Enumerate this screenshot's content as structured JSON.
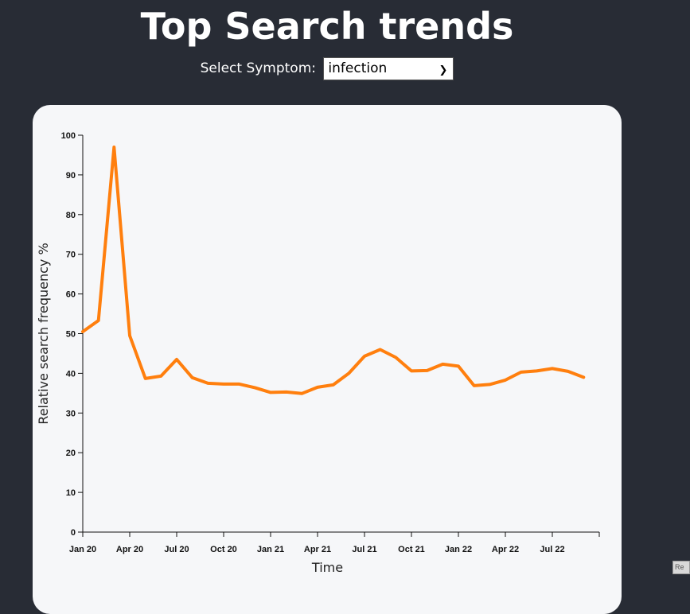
{
  "header": {
    "title": "Top Search trends"
  },
  "selector": {
    "label": "Select Symptom:",
    "selected": "infection"
  },
  "corner_widget": {
    "text": "Re"
  },
  "chart_data": {
    "type": "line",
    "title": "",
    "xlabel": "Time",
    "ylabel": "Relative search frequency %",
    "ylim": [
      0,
      100
    ],
    "yticks": [
      0,
      10,
      20,
      30,
      40,
      50,
      60,
      70,
      80,
      90,
      100
    ],
    "xrange": [
      "2020-01",
      "2022-10"
    ],
    "xticks": [
      {
        "date": "2020-01",
        "label": "Jan 20"
      },
      {
        "date": "2020-04",
        "label": "Apr 20"
      },
      {
        "date": "2020-07",
        "label": "Jul 20"
      },
      {
        "date": "2020-10",
        "label": "Oct 20"
      },
      {
        "date": "2021-01",
        "label": "Jan 21"
      },
      {
        "date": "2021-04",
        "label": "Apr 21"
      },
      {
        "date": "2021-07",
        "label": "Jul 21"
      },
      {
        "date": "2021-10",
        "label": "Oct 21"
      },
      {
        "date": "2022-01",
        "label": "Jan 22"
      },
      {
        "date": "2022-04",
        "label": "Apr 22"
      },
      {
        "date": "2022-07",
        "label": "Jul 22"
      }
    ],
    "line_color": "#ff7f0e",
    "grid": false,
    "series": [
      {
        "x": [
          "2020-01",
          "2020-02",
          "2020-03",
          "2020-04",
          "2020-05",
          "2020-06",
          "2020-07",
          "2020-08",
          "2020-09",
          "2020-10",
          "2020-11",
          "2020-12",
          "2021-01",
          "2021-02",
          "2021-03",
          "2021-04",
          "2021-05",
          "2021-06",
          "2021-07",
          "2021-08",
          "2021-09",
          "2021-10",
          "2021-11",
          "2021-12",
          "2022-01",
          "2022-02",
          "2022-03",
          "2022-04",
          "2022-05",
          "2022-06",
          "2022-07",
          "2022-08",
          "2022-09"
        ],
        "values": [
          50.5,
          53.3,
          97.0,
          49.5,
          38.7,
          39.3,
          43.5,
          38.9,
          37.5,
          37.3,
          37.3,
          36.4,
          35.2,
          35.3,
          34.9,
          36.5,
          37.1,
          40.0,
          44.3,
          46.0,
          44.0,
          40.6,
          40.7,
          42.3,
          41.8,
          36.9,
          37.2,
          38.3,
          40.3,
          40.6,
          41.2,
          40.5,
          39.0
        ]
      }
    ]
  }
}
